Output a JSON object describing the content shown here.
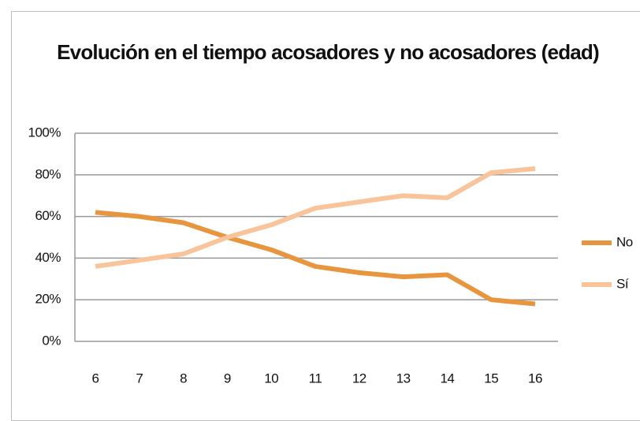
{
  "chart_data": {
    "type": "line",
    "title": "Evolución en el tiempo acosadores y no acosadores (edad)",
    "categories": [
      "6",
      "7",
      "8",
      "9",
      "10",
      "11",
      "12",
      "13",
      "14",
      "15",
      "16"
    ],
    "series": [
      {
        "name": "No",
        "color": "#e8953f",
        "values": [
          62,
          60,
          57,
          50,
          44,
          36,
          33,
          31,
          32,
          20,
          18
        ]
      },
      {
        "name": "Sí",
        "color": "#f9c49a",
        "values": [
          36,
          39,
          42,
          50,
          56,
          64,
          67,
          70,
          69,
          81,
          83
        ]
      }
    ],
    "ylim": [
      0,
      100
    ],
    "yticks": [
      {
        "value": 0,
        "label": "0%"
      },
      {
        "value": 20,
        "label": "20%"
      },
      {
        "value": 40,
        "label": "40%"
      },
      {
        "value": 60,
        "label": "60%"
      },
      {
        "value": 80,
        "label": "80%"
      },
      {
        "value": 100,
        "label": "100%"
      }
    ],
    "grid": true,
    "legend": "right"
  }
}
